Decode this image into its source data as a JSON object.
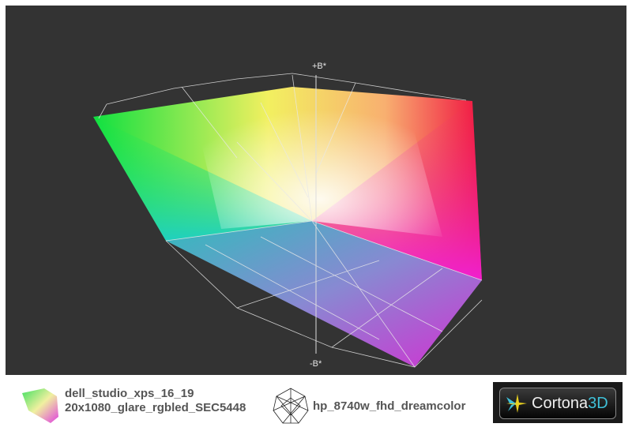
{
  "viewer": {
    "axis_top_label": "+B*",
    "axis_bottom_label": "-B*"
  },
  "legend": {
    "items": [
      {
        "line1": "dell_studio_xps_16_19",
        "line2": "20x1080_glare_rgbled_SEC5448",
        "icon": "colored-gamut-icon"
      },
      {
        "line1": "hp_8740w_fhd_dreamcolor",
        "icon": "wireframe-gamut-icon"
      }
    ]
  },
  "brand": {
    "name": "Cortona",
    "suffix": "3D",
    "accent": "#3fc0d8"
  }
}
